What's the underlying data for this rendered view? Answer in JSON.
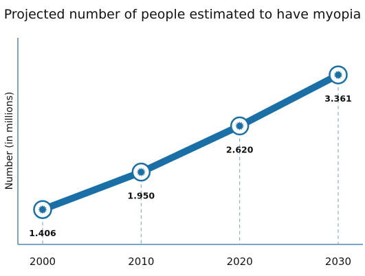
{
  "chart_data": {
    "type": "line",
    "title": "Projected number of people estimated to have myopia",
    "ylabel": "Number  (in millions)",
    "xlabel": "",
    "x": [
      2000,
      2010,
      2020,
      2030
    ],
    "categories": [
      "2000",
      "2010",
      "2020",
      "2030"
    ],
    "series": [
      {
        "values": [
          1.406,
          1.95,
          2.62,
          3.361
        ]
      }
    ],
    "data_labels": [
      "1.406",
      "1.950",
      "2.620",
      "3.361"
    ],
    "ylim": [
      0.9,
      3.9
    ],
    "grid": false,
    "colors": {
      "line": "#1a6fa6",
      "marker_fill": "#ffffff",
      "marker_core": "#1a6fa6",
      "guide": "#6aa3cc",
      "axis": "#4f86b8"
    }
  }
}
